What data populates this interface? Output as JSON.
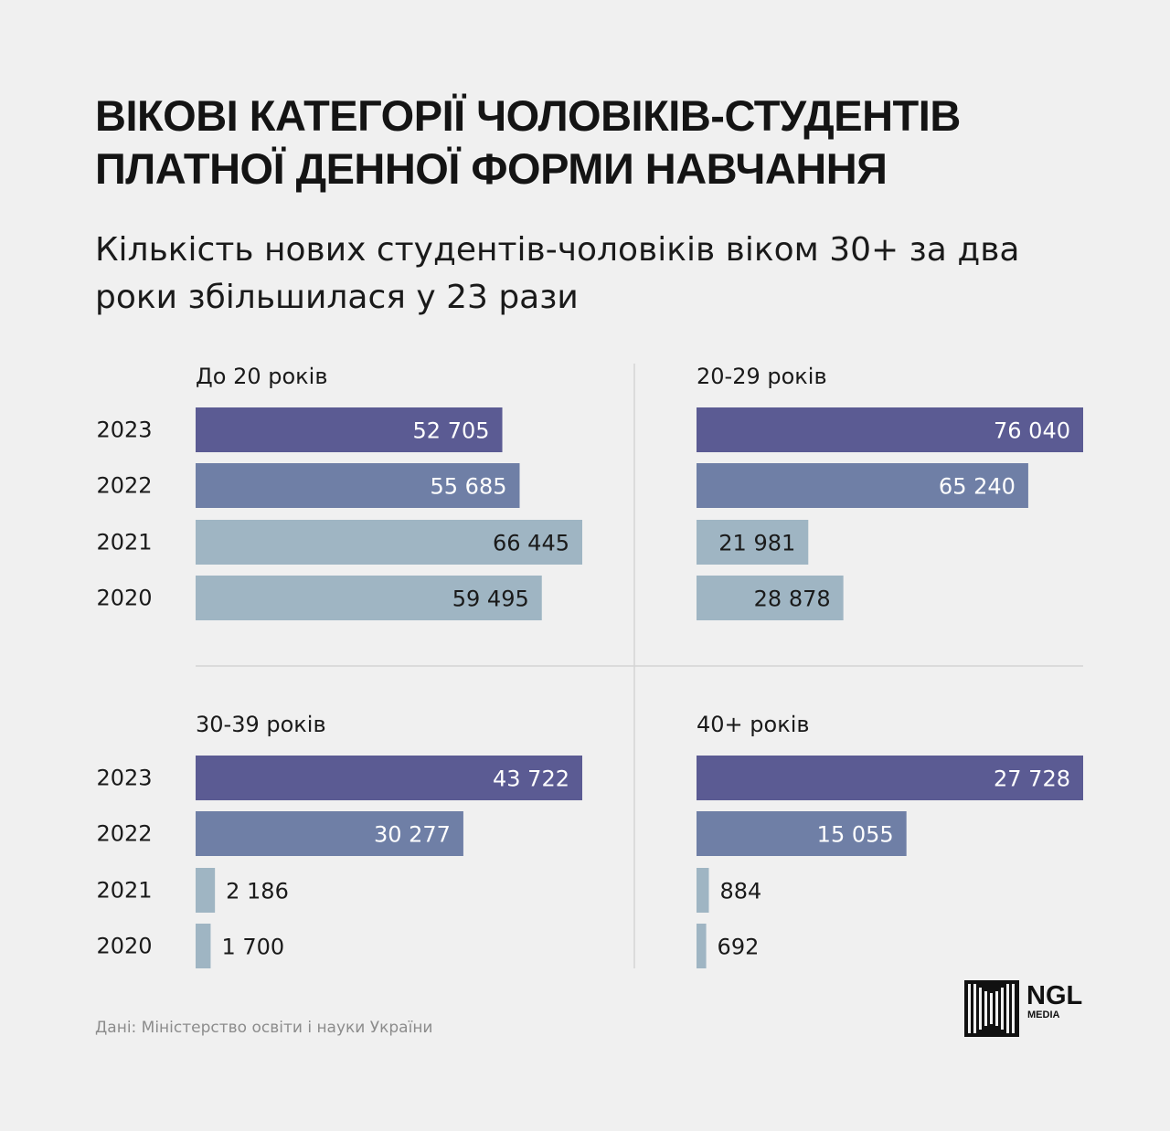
{
  "header": {
    "title": "Вікові категорії чоловіків-студентів платної денної форми навчання",
    "subtitle": "Кількість нових студентів-чоловіків віком 30+ за два роки збільшилася у 23 рази"
  },
  "footer": {
    "source": "Дані: Міністерство освіти і науки України",
    "logo_text": "NGL",
    "logo_subtext": "MEDIA"
  },
  "colors": {
    "background": "#f0f0f0",
    "bar_2023": "#5b5b93",
    "bar_2022": "#6f7fa6",
    "bar_2021": "#9fb5c3",
    "bar_2020": "#9fb5c3",
    "divider": "#d4d4d4"
  },
  "chart_data": [
    {
      "type": "bar",
      "title": "До 20 років",
      "categories": [
        "2023",
        "2022",
        "2021",
        "2020"
      ],
      "values": [
        52705,
        55685,
        66445,
        59495
      ],
      "value_labels": [
        "52 705",
        "55 685",
        "66 445",
        "59 495"
      ],
      "xlim": [
        0,
        66445
      ]
    },
    {
      "type": "bar",
      "title": "20-29 років",
      "categories": [
        "2023",
        "2022",
        "2021",
        "2020"
      ],
      "values": [
        76040,
        65240,
        21981,
        28878
      ],
      "value_labels": [
        "76 040",
        "65 240",
        "21 981",
        "28 878"
      ],
      "xlim": [
        0,
        76040
      ]
    },
    {
      "type": "bar",
      "title": "30-39 років",
      "categories": [
        "2023",
        "2022",
        "2021",
        "2020"
      ],
      "values": [
        43722,
        30277,
        2186,
        1700
      ],
      "value_labels": [
        "43 722",
        "30 277",
        "2 186",
        "1 700"
      ],
      "xlim": [
        0,
        43722
      ]
    },
    {
      "type": "bar",
      "title": "40+ років",
      "categories": [
        "2023",
        "2022",
        "2021",
        "2020"
      ],
      "values": [
        27728,
        15055,
        884,
        692
      ],
      "value_labels": [
        "27 728",
        "15 055",
        "884",
        "692"
      ],
      "xlim": [
        0,
        27728
      ]
    }
  ]
}
